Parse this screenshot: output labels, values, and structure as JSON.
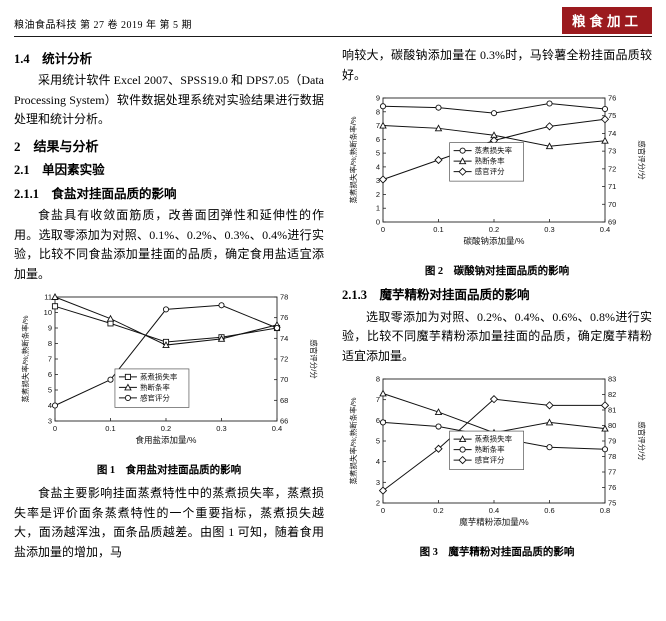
{
  "colors": {
    "badge_bg": "#9b1a1e",
    "ink": "#111111"
  },
  "header": {
    "journal_info": "粮油食品科技 第 27 卷 2019 年 第 5 期",
    "section_badge": "粮食加工"
  },
  "left_column": {
    "heading_stat": "1.4　统计分析",
    "para_stat": "采用统计软件 Excel 2007、SPSS19.0 和 DPS7.05（Data Processing System）软件数据处理系统对实验结果进行数据处理和统计分析。",
    "heading_results": "2　结果与分析",
    "heading_single_factor": "2.1　单因素实验",
    "heading_salt": "2.1.1　食盐对挂面品质的影响",
    "para_salt_intro": "食盐具有收敛面筋质，改善面团弹性和延伸性的作用。选取零添加为对照、0.1%、0.2%、0.3%、0.4%进行实验，比较不同食盐添加量挂面的品质，确定食用盐适宜添加量。",
    "fig1_caption": "图 1　食用盐对挂面品质的影响",
    "para_salt_discussion": "食盐主要影响挂面蒸煮特性中的蒸煮损失率，蒸煮损失率是评价面条蒸煮特性的一个重要指标，蒸煮损失越大，面汤越浑浊，面条品质越差。由图 1 可知，随着食用盐添加量的增加，马"
  },
  "right_column": {
    "para_soda_conclusion": "响较大，碳酸钠添加量在 0.3%时，马铃薯全粉挂面品质较好。",
    "fig2_caption": "图 2　碳酸钠对挂面品质的影响",
    "heading_konjac": "2.1.3　魔芋精粉对挂面品质的影响",
    "para_konjac_intro": "选取零添加为对照、0.2%、0.4%、0.6%、0.8%进行实验，比较不同魔芋精粉添加量挂面的品质，确定魔芋精粉适宜添加量。",
    "fig3_caption": "图 3　魔芋精粉对挂面品质的影响"
  },
  "chart_data": [
    {
      "type": "line",
      "x": [
        0,
        0.1,
        0.2,
        0.3,
        0.4
      ],
      "xlabel": "食用盐添加量/%",
      "ylabel_left": "蒸煮损失率/%;熟断条率/%",
      "ylabel_right": "感官评分/分",
      "yleft": {
        "min": 3,
        "max": 11,
        "step": 1
      },
      "yright": {
        "min": 66,
        "max": 78,
        "step": 2
      },
      "series": [
        {
          "name": "蒸煮损失率",
          "axis": "left",
          "marker": "square",
          "values": [
            10.4,
            9.3,
            8.1,
            8.4,
            9.0
          ]
        },
        {
          "name": "熟断条率",
          "axis": "left",
          "marker": "triangle",
          "values": [
            11.0,
            9.6,
            7.9,
            8.3,
            9.2
          ]
        },
        {
          "name": "感官评分",
          "axis": "right",
          "marker": "circle",
          "values": [
            67.5,
            70.0,
            76.8,
            77.2,
            75.0
          ]
        }
      ],
      "legend": {
        "x": 0.27,
        "y": 0.58
      }
    },
    {
      "type": "line",
      "x": [
        0,
        0.1,
        0.2,
        0.3,
        0.4
      ],
      "xlabel": "碳酸钠添加量/%",
      "ylabel_left": "蒸煮损失率/%;熟断条率/%",
      "ylabel_right": "感官评分/分",
      "yleft": {
        "min": 0,
        "max": 9,
        "step": 1
      },
      "yright": {
        "min": 69,
        "max": 76,
        "step": 1
      },
      "series": [
        {
          "name": "蒸煮损失率",
          "axis": "left",
          "marker": "circle",
          "values": [
            8.4,
            8.3,
            7.9,
            8.6,
            8.2
          ]
        },
        {
          "name": "熟断条率",
          "axis": "left",
          "marker": "triangle",
          "values": [
            7.0,
            6.8,
            6.3,
            5.5,
            5.9
          ]
        },
        {
          "name": "感官评分",
          "axis": "right",
          "marker": "diamond",
          "values": [
            71.4,
            72.5,
            73.6,
            74.4,
            74.8
          ]
        }
      ],
      "legend": {
        "x": 0.3,
        "y": 0.36
      }
    },
    {
      "type": "line",
      "x": [
        0,
        0.2,
        0.4,
        0.6,
        0.8
      ],
      "xlabel": "魔芋精粉添加量/%",
      "ylabel_left": "蒸煮损失率/%;熟断条率/%",
      "ylabel_right": "感官评分/分",
      "yleft": {
        "min": 2,
        "max": 8,
        "step": 1
      },
      "yright": {
        "min": 75,
        "max": 83,
        "step": 1
      },
      "series": [
        {
          "name": "蒸煮损失率",
          "axis": "left",
          "marker": "triangle",
          "values": [
            7.3,
            6.4,
            5.4,
            5.9,
            5.6
          ]
        },
        {
          "name": "熟断条率",
          "axis": "left",
          "marker": "circle",
          "values": [
            5.9,
            5.7,
            5.2,
            4.7,
            4.6
          ]
        },
        {
          "name": "感官评分",
          "axis": "right",
          "marker": "diamond",
          "values": [
            75.8,
            78.5,
            81.7,
            81.3,
            81.3
          ]
        }
      ],
      "legend": {
        "x": 0.3,
        "y": 0.42
      }
    }
  ]
}
